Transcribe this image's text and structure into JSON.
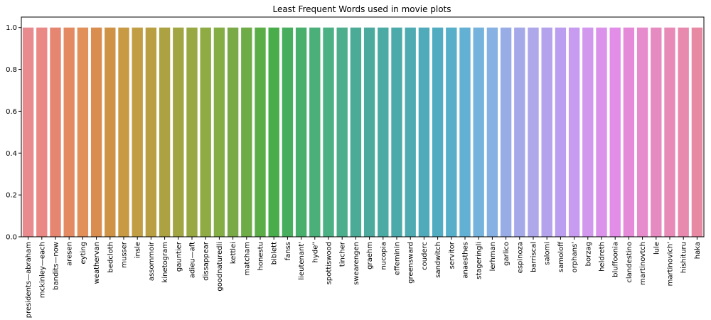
{
  "chart_data": {
    "type": "bar",
    "title": "Least Frequent Words used in movie plots",
    "xlabel": "",
    "ylabel": "",
    "ylim": [
      0,
      1.05
    ],
    "yticks": [
      0.0,
      0.2,
      0.4,
      0.6,
      0.8,
      1.0
    ],
    "ytick_labels": [
      "0.0",
      "0.2",
      "0.4",
      "0.6",
      "0.8",
      "1.0"
    ],
    "grid": false,
    "categories": [
      "presidents—abraham",
      "mckinley—each",
      "bandits—now",
      "aresen",
      "eyting",
      "weathervan",
      "bedcloth",
      "musser",
      "insle",
      "assommoir",
      "kinetogram",
      "gauntier",
      "adieu—aft",
      "dissappear",
      "goodnaturedli",
      "kettlei",
      "matcham",
      "honestu",
      "biblett",
      "fanss",
      "lieutenant'",
      "hyde\"",
      "spottiswood",
      "tincher",
      "swearengen",
      "graehm",
      "nucopia",
      "effeminin",
      "greensward",
      "couderc",
      "sandwitch",
      "servitor",
      "anaesthes",
      "stageringli",
      "lerhman",
      "garlico",
      "espinoza",
      "barriscal",
      "salomi",
      "samoloff",
      "orphans'",
      "borzag",
      "heldreth",
      "bluffoonia",
      "clandestino",
      "martinovtch",
      "lule",
      "martinovich'",
      "hishituru",
      "haka"
    ],
    "values": [
      1,
      1,
      1,
      1,
      1,
      1,
      1,
      1,
      1,
      1,
      1,
      1,
      1,
      1,
      1,
      1,
      1,
      1,
      1,
      1,
      1,
      1,
      1,
      1,
      1,
      1,
      1,
      1,
      1,
      1,
      1,
      1,
      1,
      1,
      1,
      1,
      1,
      1,
      1,
      1,
      1,
      1,
      1,
      1,
      1,
      1,
      1,
      1,
      1,
      1
    ],
    "colors": [
      "#e98a8f",
      "#e98884",
      "#e68670",
      "#e48a62",
      "#e1905a",
      "#d98e50",
      "#cf9345",
      "#c89a43",
      "#c19e44",
      "#ba9f42",
      "#ada242",
      "#a2a642",
      "#98a944",
      "#8fac44",
      "#84ae45",
      "#7aa948",
      "#6eac48",
      "#5bae47",
      "#4aad4c",
      "#47ae5e",
      "#48af6c",
      "#4aaf79",
      "#4bb084",
      "#4dae8e",
      "#4bab96",
      "#4baa9d",
      "#4baaa4",
      "#4caaab",
      "#4eabb2",
      "#4fabb9",
      "#51acc1",
      "#57afca",
      "#62b0d3",
      "#75b3dc",
      "#86b1e2",
      "#98ade6",
      "#a5a9e8",
      "#aea7ea",
      "#b4a2ec",
      "#bb9eef",
      "#c79bef",
      "#d198ee",
      "#da92eb",
      "#e28de8",
      "#e58ad9",
      "#e68bcb",
      "#e68bc2",
      "#e78ab8",
      "#e88aae",
      "#e889a4"
    ]
  }
}
